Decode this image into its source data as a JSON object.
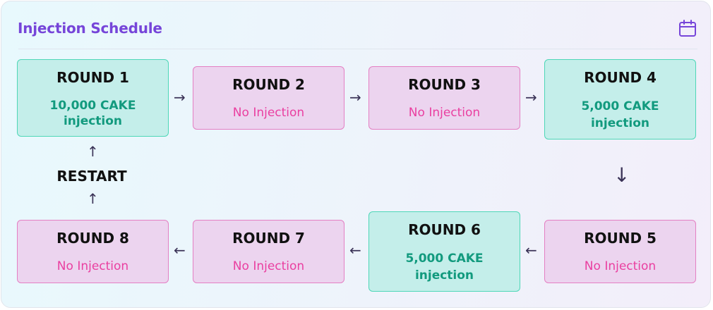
{
  "header": {
    "title": "Injection Schedule",
    "icon": "calendar-icon"
  },
  "rounds": [
    {
      "title": "ROUND 1",
      "status": "10,000 CAKE injection",
      "status_line1": "10,000 CAKE",
      "status_line2": "injection",
      "injection": true
    },
    {
      "title": "ROUND 2",
      "status": "No Injection",
      "injection": false
    },
    {
      "title": "ROUND 3",
      "status": "No Injection",
      "injection": false
    },
    {
      "title": "ROUND 4",
      "status": "5,000 CAKE injection",
      "status_line1": "5,000 CAKE",
      "status_line2": "injection",
      "injection": true
    },
    {
      "title": "ROUND 5",
      "status": "No Injection",
      "injection": false
    },
    {
      "title": "ROUND 6",
      "status": "5,000 CAKE injection",
      "status_line1": "5,000 CAKE",
      "status_line2": "injection",
      "injection": true
    },
    {
      "title": "ROUND 7",
      "status": "No Injection",
      "injection": false
    },
    {
      "title": "ROUND 8",
      "status": "No Injection",
      "injection": false
    }
  ],
  "restart_label": "RESTART",
  "colors": {
    "title": "#7645d9",
    "injection_bg": "#c4eeea",
    "injection_border": "#4ed7b7",
    "injection_text": "#129a7e",
    "no_injection_bg": "#ecd4ef",
    "no_injection_border": "#e47fc3",
    "no_injection_text": "#ea3fa0"
  }
}
